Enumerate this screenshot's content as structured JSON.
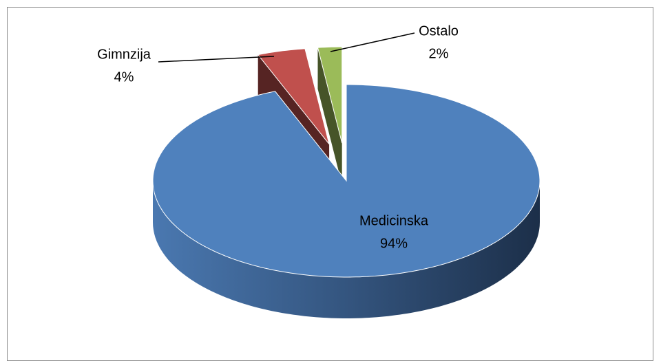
{
  "chart_data": {
    "type": "pie3d",
    "categories": [
      "Medicinska",
      "Gimnzija",
      "Ostalo"
    ],
    "values": [
      94,
      4,
      2
    ],
    "value_labels": [
      "94%",
      "4%",
      "2%"
    ],
    "colors": [
      "#4f81bd",
      "#c0504d",
      "#9bbb59"
    ]
  }
}
